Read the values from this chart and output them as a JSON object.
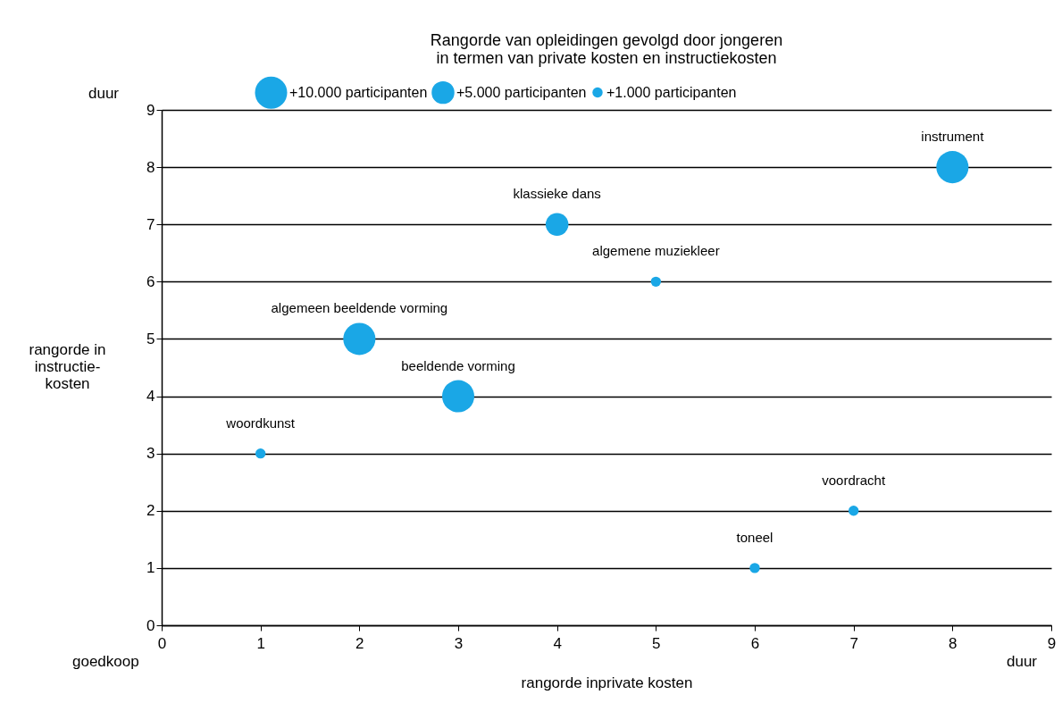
{
  "chart_data": {
    "type": "bubble",
    "title": [
      "Rangorde van opleidingen gevolgd door jongeren",
      "in termen van private kosten en instructiekosten"
    ],
    "xlabel": "rangorde inprivate kosten",
    "ylabel": "rangorde in instructie-kosten",
    "x": [
      1,
      2,
      3,
      4,
      5,
      6,
      7,
      8
    ],
    "series": [
      {
        "color": "#1aa7e6",
        "values": [
          3,
          5,
          4,
          7,
          6,
          1,
          2,
          8
        ],
        "sizes": [
          1000,
          10000,
          10000,
          5000,
          1000,
          1000,
          1000,
          10000
        ]
      }
    ],
    "size_legend": [
      {
        "value": 10000,
        "label": "+10.000 participanten"
      },
      {
        "value": 5000,
        "label": "+5.000 participanten"
      },
      {
        "value": 1000,
        "label": "+1.000 participanten"
      }
    ],
    "xlim": [
      0,
      9
    ],
    "ylim": [
      0,
      9
    ],
    "xticks": [
      0,
      1,
      2,
      3,
      4,
      5,
      6,
      7,
      8,
      9
    ],
    "yticks": [
      0,
      1,
      2,
      3,
      4,
      5,
      6,
      7,
      8,
      9
    ],
    "grid": "y",
    "annotations": [
      {
        "text": "woordkunst",
        "x": 1,
        "y": 3
      },
      {
        "text": "algemeen beeldende vorming",
        "x": 2,
        "y": 5
      },
      {
        "text": "beeldende vorming",
        "x": 3,
        "y": 4
      },
      {
        "text": "klassieke dans",
        "x": 4,
        "y": 7
      },
      {
        "text": "algemene muziekleer",
        "x": 5,
        "y": 6
      },
      {
        "text": "toneel",
        "x": 6,
        "y": 1
      },
      {
        "text": "voordracht",
        "x": 7,
        "y": 2
      },
      {
        "text": "instrument",
        "x": 8,
        "y": 8
      },
      "duur",
      "goedkoop",
      "duur"
    ]
  }
}
